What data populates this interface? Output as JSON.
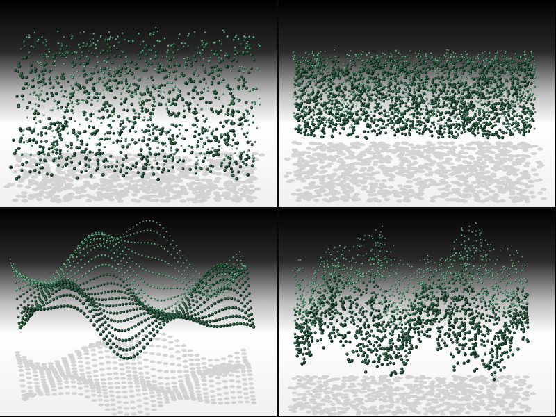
{
  "panels": [
    {
      "id": "random-cloud-sparse",
      "pattern": "random-box",
      "density": "sparse",
      "point_color": "#2f6b4a",
      "highlight_color": "#8fd3b0"
    },
    {
      "id": "random-cloud-dense",
      "pattern": "random-slab",
      "density": "dense",
      "point_color": "#2f6b4a",
      "highlight_color": "#8fd3b0"
    },
    {
      "id": "wave-surface",
      "pattern": "wavy-ribbons",
      "density": "structured",
      "point_color": "#2f6b4a",
      "highlight_color": "#8fd3b0"
    },
    {
      "id": "noisy-wave-surface",
      "pattern": "noisy-wavy",
      "density": "medium",
      "point_color": "#2f6b4a",
      "highlight_color": "#8fd3b0"
    }
  ],
  "scene": {
    "background_top": "#000000",
    "background_floor": "#ffffff",
    "shadow_color": "#c8c8c8"
  }
}
